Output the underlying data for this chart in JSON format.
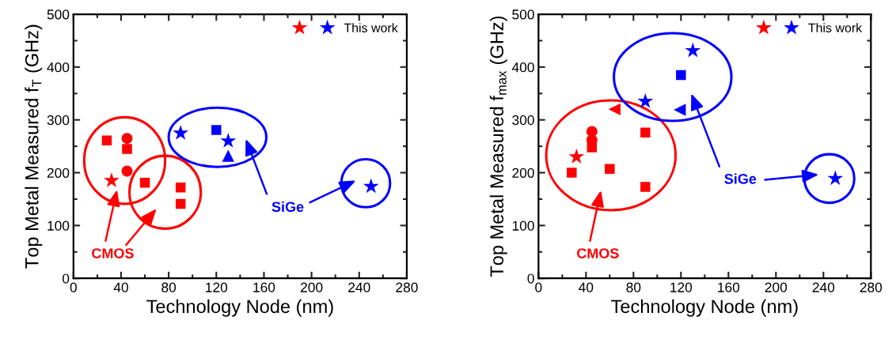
{
  "chart_data": [
    {
      "type": "scatter",
      "xlabel": "Technology Node (nm)",
      "ylabel": "Top Metal Measured f$_{T}$ (GHz)",
      "xlim": [
        0,
        280
      ],
      "ylim": [
        0,
        500
      ],
      "xticks": [
        0,
        40,
        80,
        120,
        160,
        200,
        240,
        280
      ],
      "yticks": [
        0,
        100,
        200,
        300,
        400,
        500
      ],
      "legend": "top right",
      "annotations": [
        "CMOS",
        "SiGe"
      ],
      "series": [
        {
          "color": "#ff0000",
          "marker": "square",
          "x": [
            28,
            45,
            60,
            90,
            90
          ],
          "values": [
            261,
            245,
            181,
            172,
            141
          ]
        },
        {
          "color": "#ff0000",
          "marker": "circle",
          "x": [
            45,
            45
          ],
          "values": [
            265,
            203
          ]
        },
        {
          "color": "#0000ff",
          "marker": "square",
          "x": [
            120
          ],
          "values": [
            281
          ]
        },
        {
          "color": "#0000ff",
          "marker": "triangle",
          "x": [
            130
          ],
          "values": [
            232
          ]
        },
        {
          "name": "This work",
          "marker": "star",
          "colors": [
            "#ff0000",
            "#0000ff",
            "#0000ff",
            "#0000ff"
          ],
          "x": [
            32,
            90,
            130,
            250
          ],
          "values": [
            185,
            275,
            260,
            174
          ]
        }
      ]
    },
    {
      "type": "scatter",
      "xlabel": "Technology Node (nm)",
      "ylabel": "Top Metal Measured f$_{max}$ (GHz)",
      "xlim": [
        0,
        280
      ],
      "ylim": [
        0,
        500
      ],
      "xticks": [
        0,
        40,
        80,
        120,
        160,
        200,
        240,
        280
      ],
      "yticks": [
        0,
        100,
        200,
        300,
        400,
        500
      ],
      "legend": "top right",
      "annotations": [
        "CMOS",
        "SiGe"
      ],
      "series": [
        {
          "color": "#ff0000",
          "marker": "square",
          "x": [
            28,
            45,
            60,
            90,
            90
          ],
          "values": [
            200,
            248,
            207,
            276,
            173
          ]
        },
        {
          "color": "#ff0000",
          "marker": "circle",
          "x": [
            45,
            45
          ],
          "values": [
            278,
            262
          ]
        },
        {
          "color": "#ff0000",
          "marker": "triangle-left",
          "x": [
            64
          ],
          "values": [
            320
          ]
        },
        {
          "color": "#0000ff",
          "marker": "square",
          "x": [
            120
          ],
          "values": [
            385
          ]
        },
        {
          "color": "#0000ff",
          "marker": "triangle-left",
          "x": [
            119
          ],
          "values": [
            319
          ]
        },
        {
          "name": "This work",
          "marker": "star",
          "colors": [
            "#ff0000",
            "#0000ff",
            "#0000ff",
            "#0000ff"
          ],
          "x": [
            32,
            90,
            130,
            250
          ],
          "values": [
            230,
            335,
            431,
            189
          ]
        }
      ]
    }
  ]
}
